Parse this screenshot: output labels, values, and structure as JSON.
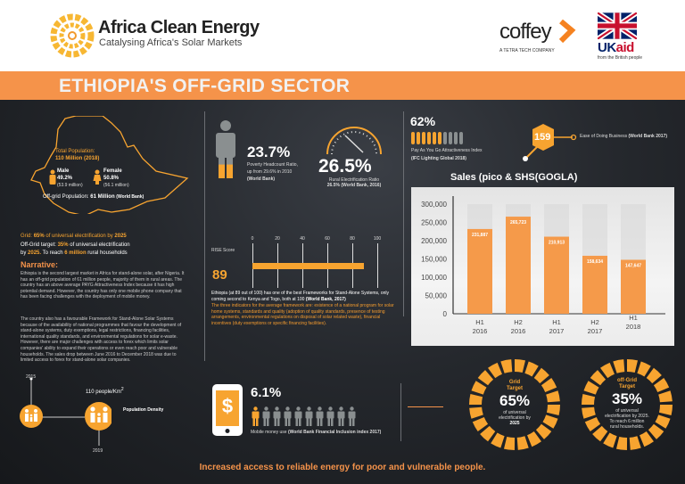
{
  "header": {
    "brand_title": "Africa Clean Energy",
    "brand_subtitle": "Catalysing Africa's Solar Markets",
    "partner1": "coffey",
    "partner1_sub": "A TETRA TECH COMPANY",
    "partner2": "UKaid",
    "partner2_uk": "UK",
    "partner2_aid": "aid",
    "partner2_sub": "from the British people"
  },
  "banner": {
    "title": "ETHIOPIA'S OFF-GRID SECTOR"
  },
  "map": {
    "total_label": "Total Population:",
    "total_value": "110 Million (2018)",
    "male_label": "Male",
    "male_pct": "49.2%",
    "male_abs": "(53.9 million)",
    "female_label": "Female",
    "female_pct": "50.8%",
    "female_abs": "(56.1 million)",
    "offgrid_label": "Off-grid Population:",
    "offgrid_value": "61 Million",
    "offgrid_src": "(World Bank)"
  },
  "targets_text": {
    "grid_a": "Grid:",
    "grid_b": "65%",
    "grid_c": "of universal electrification by",
    "grid_d": "2025",
    "off_a": "Off-Grid target:",
    "off_b": "35%",
    "off_c": "of universal electrification",
    "off_d": "by",
    "off_e": "2025.",
    "off_f": "To reach",
    "off_g": "6 million",
    "off_h": "rural households"
  },
  "narrative": {
    "title": "Narrative:",
    "p1": "Ethiopia is the second largest market in Africa for stand-alone solar, after Nigeria. It has an off-grid population of 61 million people, majority of them in rural areas. The country has an above average PAYG Attractiveness Index because it has high potential demand. However, the country has only one mobile phone company that has been facing challenges with the deployment of mobile money.",
    "p2": "The country also has a favourable Framework for Stand-Alone Solar Systems because of the availability of national programmes that favour the development of stand-alone systems, duty exemptions, legal restrictions, financing facilities, international quality standards, and environmental regulations for solar e-waste. However, there are major challenges with access to forex which limits solar companies' ability to expand their operations or even reach poor and vulnerable households. The sales drop between June 2016 to December 2018 was due to limited access to forex for stand-alone solar companies."
  },
  "density": {
    "year_start": "2015",
    "year_end": "2019",
    "value": "110 people/Km",
    "sup": "2",
    "label": "Population Density"
  },
  "poverty": {
    "value": "23.7%",
    "line1": "Poverty Headcount Ratio,",
    "line2": "up from 29.6% in 2010",
    "src": "(World Bank)",
    "fill_pct": 23.7
  },
  "rural": {
    "value": "26.5%",
    "label": "Rural Electrification Ratio",
    "src": "26.5% (World Bank, 2016)",
    "gauge_pct": 26.5
  },
  "rise": {
    "label": "RISE Score",
    "value": "89",
    "score": 89,
    "ticks": [
      "0",
      "20",
      "40",
      "60",
      "80",
      "100"
    ],
    "text": "Ethiopia (at 89 out of 100) has one of the best Frameworks for Stand-Alone Systems, only coming second to Kenya and Togo, both at 100",
    "text_src": "(World Bank, 2017)",
    "note": "The three indicators for the average framework are: existence of a national program for solar home systems, standards and quality (adoption of quality standards, presence of testing arrangements, environmental regulations on disposal of solar related waste), financial incentives (duty exemptions or specific financing facilities)."
  },
  "payg": {
    "value": "62%",
    "pct": 62,
    "label": "Pay As You Go Attractiveness Index",
    "src": "(IFC Lighting Global 2018)"
  },
  "doing_business": {
    "value": "159",
    "label": "Ease of Doing Business",
    "src": "(World Bank 2017)"
  },
  "chart_data": {
    "type": "bar",
    "title": "Sales (pico & SHS(GOGLA)",
    "categories": [
      "H1 2016",
      "H2 2016",
      "H1 2017",
      "H2 2017",
      "H1 2018"
    ],
    "cat_lines": [
      [
        "H1",
        "2016"
      ],
      [
        "H2",
        "2016"
      ],
      [
        "H1",
        "2017"
      ],
      [
        "H2",
        "2017"
      ],
      [
        "H1",
        "2018"
      ]
    ],
    "values": [
      231887,
      265723,
      210913,
      158634,
      147647
    ],
    "value_labels": [
      "231,887",
      "265,723",
      "210,913",
      "158,634",
      "147,647"
    ],
    "ylim": [
      0,
      300000
    ],
    "yticks": [
      "0",
      "50,000",
      "100,000",
      "150,000",
      "200,000",
      "250,000",
      "300,000"
    ],
    "bar_color": "#f59a4a",
    "grid": false
  },
  "mobile": {
    "value": "6.1%",
    "label": "Mobile money use",
    "src": "(World Bank Financial Inclusion index 2017)",
    "icon": "dollar-phone-icon",
    "people_highlighted": 1,
    "people_total": 10
  },
  "grid_target": {
    "title1": "Grid",
    "title2": "Target",
    "value": "65%",
    "l1": "of universal",
    "l2": "electrification by",
    "l3": "2025"
  },
  "offgrid_target": {
    "title1": "off-Grid",
    "title2": "Target",
    "value": "35%",
    "l1": "of universal",
    "l2": "electrification by 2025.",
    "l3": "To reach 6 million",
    "l4": "rural households."
  },
  "footer": {
    "text": "Increased access to reliable energy for poor and vulnerable people."
  },
  "colors": {
    "orange": "#f7a430",
    "banner": "#f5934a",
    "dark": "#1e2024",
    "gray": "#8a8f90"
  }
}
